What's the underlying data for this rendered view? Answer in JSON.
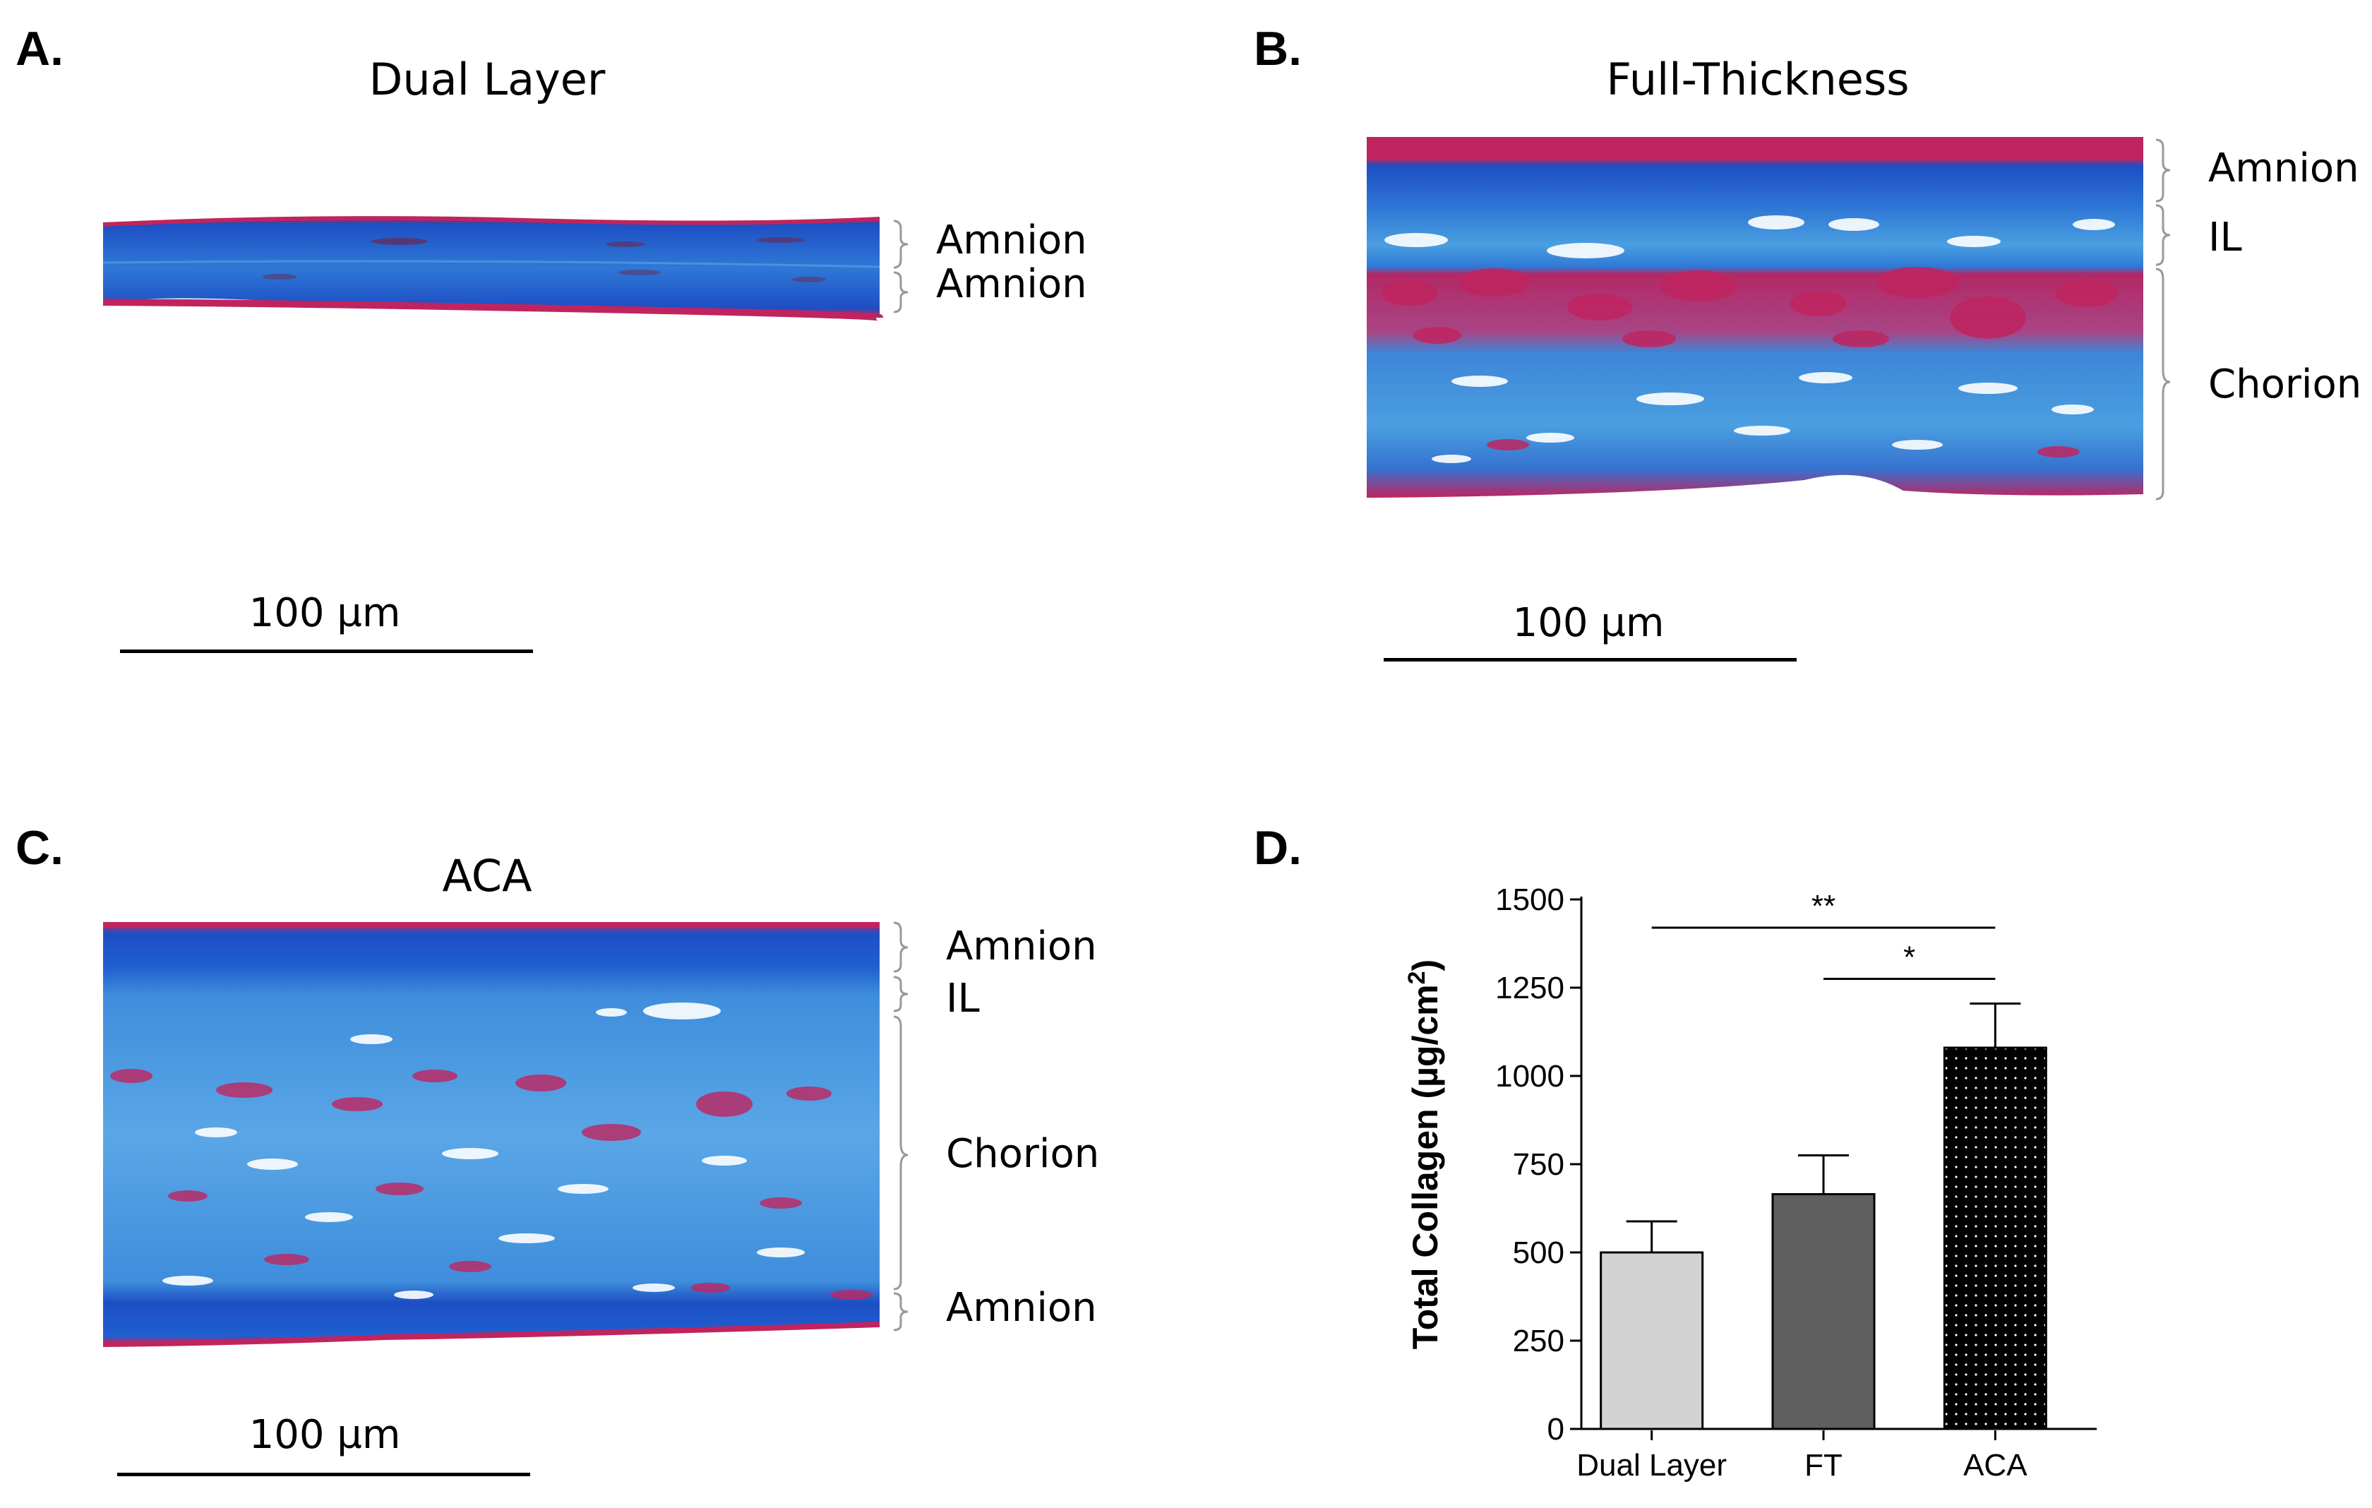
{
  "panels": {
    "a": {
      "letter": "A.",
      "title": "Dual Layer",
      "scale_label": "100 µm",
      "layers": [
        "Amnion",
        "Amnion"
      ]
    },
    "b": {
      "letter": "B.",
      "title": "Full-Thickness",
      "scale_label": "100 µm",
      "layers": [
        "Amnion",
        "IL",
        "Chorion"
      ]
    },
    "c": {
      "letter": "C.",
      "title": "ACA",
      "scale_label": "100 µm",
      "layers": [
        "Amnion",
        "IL",
        "Chorion",
        "Amnion"
      ]
    },
    "d": {
      "letter": "D."
    }
  },
  "colors": {
    "stain_blue": "#1f5fd0",
    "stain_light_blue": "#5aa6e6",
    "stain_magenta": "#c0245f",
    "bar_dual_layer": "#d3d3d3",
    "bar_ft": "#5f5f5f",
    "bar_aca": "#000000"
  },
  "chart_data": {
    "type": "bar",
    "categories": [
      "Dual Layer",
      "FT",
      "ACA"
    ],
    "values": [
      500,
      665,
      1080
    ],
    "errors": [
      88,
      110,
      125
    ],
    "ylabel": "Total Collagen (µg/cm",
    "ylabel_superscript": "2",
    "ylabel_suffix": ")",
    "ylim": [
      0,
      1500
    ],
    "yticks": [
      0,
      250,
      500,
      750,
      1000,
      1250,
      1500
    ],
    "ytick_labels": [
      "0",
      "250",
      "500",
      "750",
      "1000",
      "1250",
      "1500"
    ],
    "bar_fills": [
      "light-gray",
      "dark-gray",
      "black-dotted"
    ],
    "significance": [
      {
        "from": "Dual Layer",
        "to": "ACA",
        "label": "**"
      },
      {
        "from": "FT",
        "to": "ACA",
        "label": "*"
      }
    ]
  }
}
